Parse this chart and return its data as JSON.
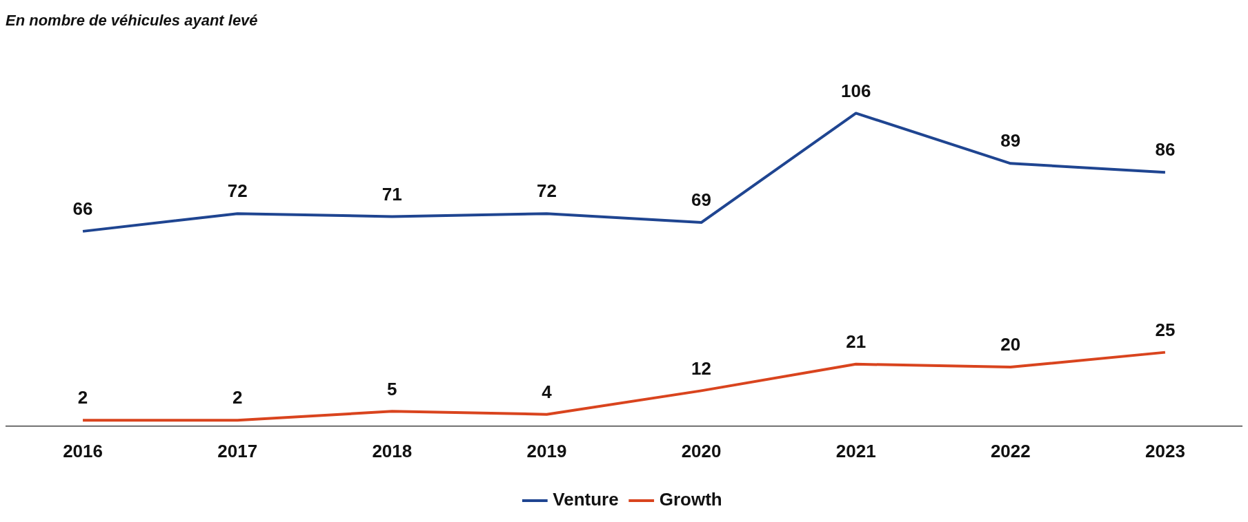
{
  "chart_data": {
    "type": "line",
    "title": "En nombre de véhicules ayant levé",
    "categories": [
      "2016",
      "2017",
      "2018",
      "2019",
      "2020",
      "2021",
      "2022",
      "2023"
    ],
    "series": [
      {
        "name": "Venture",
        "color": "#1f4591",
        "values": [
          66,
          72,
          71,
          72,
          69,
          106,
          89,
          86
        ]
      },
      {
        "name": "Growth",
        "color": "#d9441e",
        "values": [
          2,
          2,
          5,
          4,
          12,
          21,
          20,
          25
        ]
      }
    ],
    "tick_labels": "x",
    "data_labels": true,
    "legend": "bottom",
    "grid": false,
    "marker": "none",
    "line_style": "solid"
  }
}
